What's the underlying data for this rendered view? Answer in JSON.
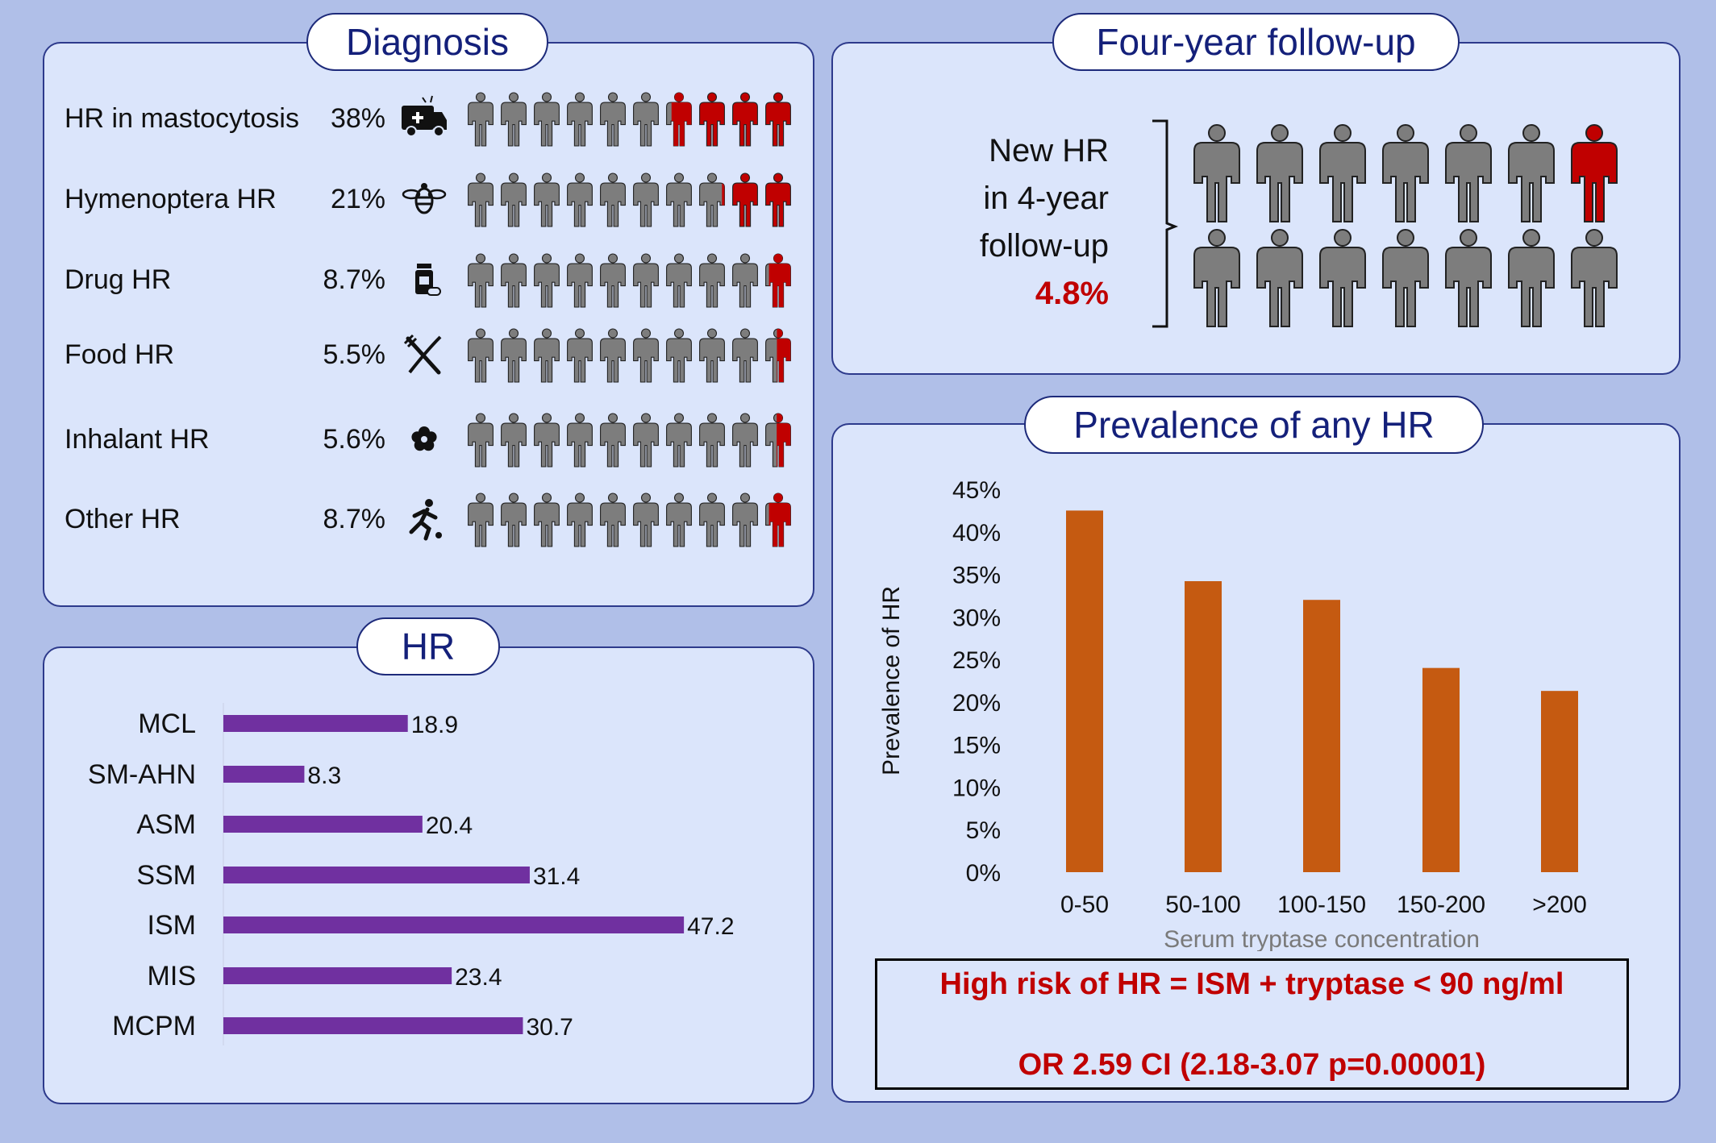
{
  "colors": {
    "background": "#b0bfe8",
    "panel": "#dbe5fb",
    "title_text": "#14207a",
    "person_gray": "#7d7d7d",
    "person_red": "#c00000",
    "hbar": "#7030a0",
    "vbar": "#c55a11",
    "risk_text": "#c00000"
  },
  "diagnosis": {
    "title": "Diagnosis",
    "rows": [
      {
        "name": "HR in mastocytosis",
        "pct": "38%",
        "icon": "ambulance-icon",
        "red_fraction": 0.38
      },
      {
        "name": "Hymenoptera HR",
        "pct": "21%",
        "icon": "bee-icon",
        "red_fraction": 0.21
      },
      {
        "name": "Drug HR",
        "pct": "8.7%",
        "icon": "pill-bottle-icon",
        "red_fraction": 0.087
      },
      {
        "name": "Food HR",
        "pct": "5.5%",
        "icon": "fork-knife-icon",
        "red_fraction": 0.055
      },
      {
        "name": "Inhalant  HR",
        "pct": "5.6%",
        "icon": "flower-icon",
        "red_fraction": 0.056
      },
      {
        "name": "Other     HR",
        "pct": "8.7%",
        "icon": "running-person-icon",
        "red_fraction": 0.087
      }
    ]
  },
  "followup": {
    "title": "Four-year follow-up",
    "line1": "New HR",
    "line2": "in 4-year",
    "line3": "follow-up",
    "value": "4.8%",
    "people_red_fraction": 0.048
  },
  "prevalence": {
    "title": "Prevalence of any HR",
    "risk_line1": "High risk of HR = ISM + tryptase < 90 ng/ml",
    "risk_line2": "OR 2.59 CI (2.18-3.07 p=0.00001)"
  },
  "hr_panel": {
    "title": "HR"
  },
  "chart_data": [
    {
      "type": "bar",
      "orientation": "horizontal",
      "title": "HR",
      "categories": [
        "MCL",
        "SM-AHN",
        "ASM",
        "SSM",
        "ISM",
        "MIS",
        "MCPM"
      ],
      "values": [
        18.9,
        8.3,
        20.4,
        31.4,
        47.2,
        23.4,
        30.7
      ],
      "value_labels": [
        "18.9",
        "8.3",
        "20.4",
        "31.4",
        "47.2",
        "23.4",
        "30.7"
      ],
      "xlim": [
        0,
        50
      ],
      "grid": false
    },
    {
      "type": "bar",
      "title": "",
      "categories": [
        "0-50",
        "50-100",
        "100-150",
        "150-200",
        ">200"
      ],
      "values": [
        42.5,
        34.2,
        32.0,
        24.0,
        21.3
      ],
      "ylim": [
        0,
        45
      ],
      "yticks": [
        "0%",
        "5%",
        "10%",
        "15%",
        "20%",
        "25%",
        "30%",
        "35%",
        "40%",
        "45%"
      ],
      "xlabel": "Serum tryptase concentration",
      "ylabel": "Prevalence of HR",
      "grid": false
    }
  ]
}
